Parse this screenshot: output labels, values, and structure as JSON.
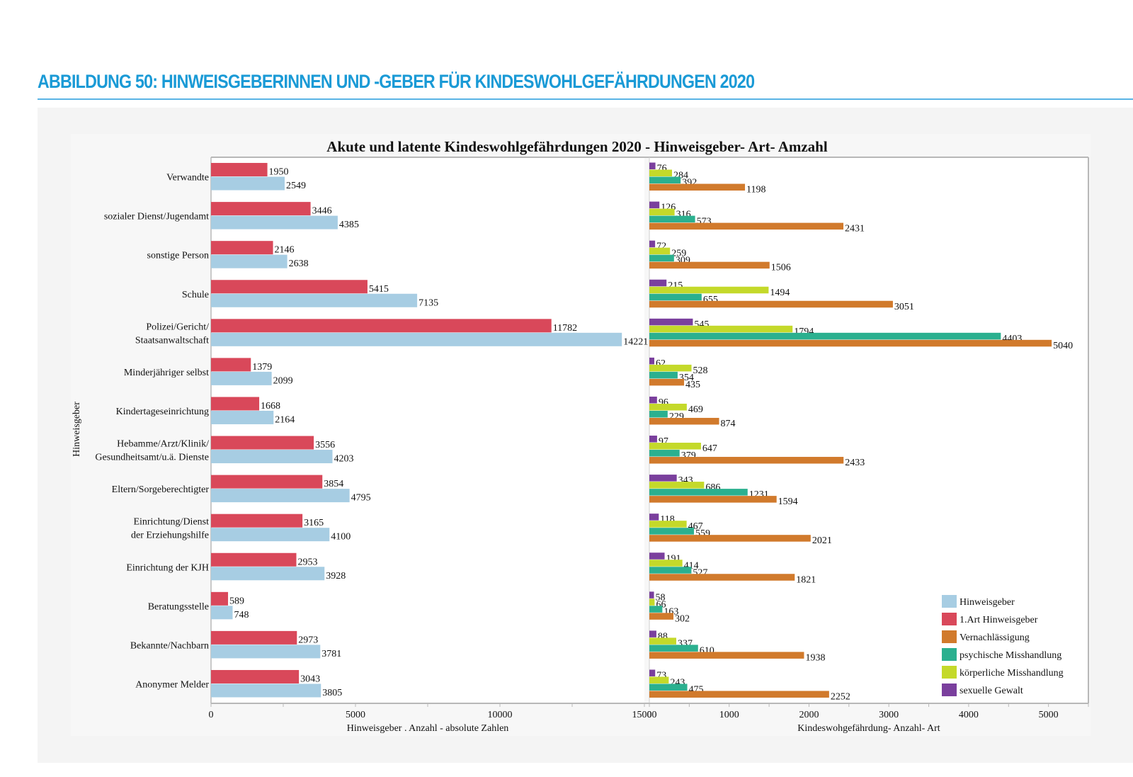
{
  "figure": {
    "heading": "ABBILDUNG 50: HINWEISGEBERINNEN UND -GEBER FÜR KINDESWOHLGEFÄHRDUNGEN 2020",
    "accent_color": "#1a9ad6"
  },
  "chart_data": {
    "type": "bar",
    "orientation": "horizontal",
    "title": "Akute und latente Kindeswohlgefährdungen 2020 - Hinweisgeber- Art- Amzahl",
    "ylabel": "Hinweisgeber",
    "categories": [
      "Verwandte",
      "sozialer Dienst/Jugendamt",
      "sonstige Person",
      "Schule",
      "Polizei/Gericht/\nStaatsanwaltschaft",
      "Minderjähriger selbst",
      "Kindertageseinrichtung",
      "Hebamme/Arzt/Klinik/\nGesundheitsamt/u.ä. Dienste",
      "Eltern/Sorgeberechtigter",
      "Einrichtung/Dienst\nder Erziehungshilfe",
      "Einrichtung der KJH",
      "Beratungsstelle",
      "Bekannte/Nachbarn",
      "Anonymer Melder"
    ],
    "panels": [
      {
        "xlabel": "Hinweisgeber . Anzahl - absolute Zahlen",
        "xlim": [
          0,
          15000
        ],
        "xticks": [
          0,
          5000,
          10000,
          15000
        ],
        "series": [
          {
            "name": "1.Art Hinweisgeber",
            "color": "#d9485a",
            "values": [
              1950,
              3446,
              2146,
              5415,
              11782,
              1379,
              1668,
              3556,
              3854,
              3165,
              2953,
              589,
              2973,
              3043
            ]
          },
          {
            "name": "Hinweisgeber",
            "color": "#a7cde3",
            "values": [
              2549,
              4385,
              2638,
              7135,
              14221,
              2099,
              2164,
              4203,
              4795,
              4100,
              3928,
              748,
              3781,
              3805
            ]
          }
        ]
      },
      {
        "xlabel": "Kindeswohgefährdung- Anzahl- Art",
        "xlim": [
          0,
          5500
        ],
        "xticks": [
          0,
          1000,
          2000,
          3000,
          4000,
          5000
        ],
        "series": [
          {
            "name": "sexuelle Gewalt",
            "color": "#7a3f9d",
            "values": [
              76,
              126,
              72,
              215,
              545,
              62,
              96,
              97,
              343,
              118,
              191,
              58,
              88,
              73
            ]
          },
          {
            "name": "körperliche Misshandlung",
            "color": "#c4d92a",
            "values": [
              284,
              316,
              259,
              1494,
              1794,
              528,
              469,
              647,
              686,
              467,
              414,
              66,
              337,
              243
            ]
          },
          {
            "name": "psychische Misshandlung",
            "color": "#2bb08f",
            "values": [
              392,
              573,
              309,
              655,
              4403,
              354,
              229,
              379,
              1231,
              559,
              527,
              163,
              610,
              475
            ]
          },
          {
            "name": "Vernachlässigung",
            "color": "#d17a2c",
            "values": [
              1198,
              2431,
              1506,
              3051,
              5040,
              435,
              874,
              2433,
              1594,
              2021,
              1821,
              302,
              1938,
              2252
            ]
          }
        ]
      }
    ],
    "legend": {
      "position": "bottom-right",
      "entries": [
        {
          "label": "Hinweisgeber",
          "color": "#a7cde3"
        },
        {
          "label": "1.Art Hinweisgeber",
          "color": "#d9485a"
        },
        {
          "label": "Vernachlässigung",
          "color": "#d17a2c"
        },
        {
          "label": "psychische Misshandlung",
          "color": "#2bb08f"
        },
        {
          "label": "körperliche Misshandlung",
          "color": "#c4d92a"
        },
        {
          "label": "sexuelle Gewalt",
          "color": "#7a3f9d"
        }
      ]
    },
    "grid": false
  }
}
